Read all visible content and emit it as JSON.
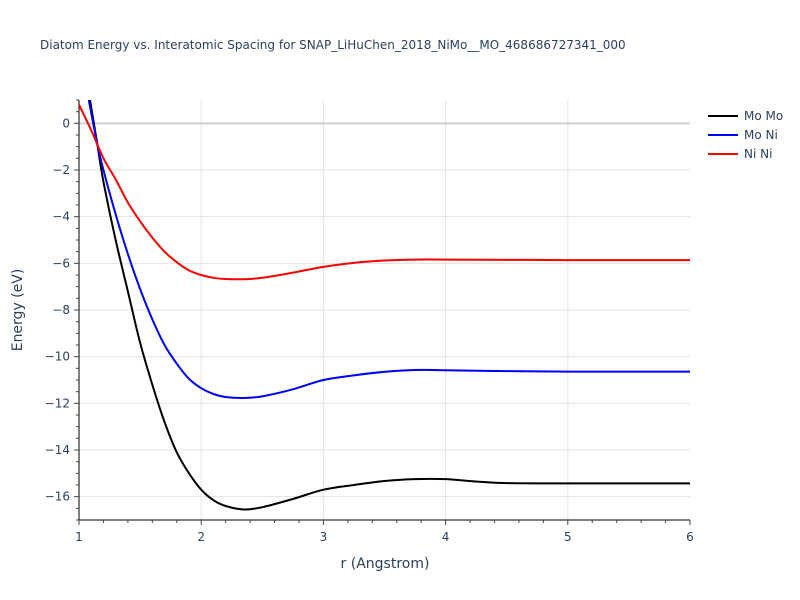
{
  "title": "Diatom Energy vs. Interatomic Spacing for SNAP_LiHuChen_2018_NiMo__MO_468686727341_000",
  "legend": [
    {
      "label": "Mo Mo",
      "color": "#000000"
    },
    {
      "label": "Mo Ni",
      "color": "#0000ff"
    },
    {
      "label": "Ni Ni",
      "color": "#ff0000"
    }
  ],
  "xaxis": {
    "label": "r (Angstrom)",
    "ticks": [
      "1",
      "2",
      "3",
      "4",
      "5",
      "6"
    ]
  },
  "yaxis": {
    "label": "Energy (eV)",
    "ticks": [
      "0",
      "−2",
      "−4",
      "−6",
      "−8",
      "−10",
      "−12",
      "−14",
      "−16"
    ]
  },
  "chart_data": {
    "type": "line",
    "title": "Diatom Energy vs. Interatomic Spacing for SNAP_LiHuChen_2018_NiMo__MO_468686727341_000",
    "xlabel": "r (Angstrom)",
    "ylabel": "Energy (eV)",
    "xlim": [
      1,
      6
    ],
    "ylim": [
      -17,
      1
    ],
    "grid": true,
    "legend_position": "top-right, outside plot",
    "series": [
      {
        "name": "Mo Mo",
        "color": "#000000",
        "x": [
          1.09,
          1.15,
          1.2,
          1.3,
          1.4,
          1.5,
          1.6,
          1.7,
          1.8,
          1.9,
          2.0,
          2.1,
          2.2,
          2.35,
          2.5,
          2.75,
          3.0,
          3.25,
          3.5,
          3.75,
          4.0,
          4.25,
          4.5,
          5.0,
          5.5,
          6.0
        ],
        "y": [
          1.0,
          -0.9,
          -2.5,
          -5.0,
          -7.2,
          -9.4,
          -11.2,
          -12.8,
          -14.1,
          -15.0,
          -15.7,
          -16.15,
          -16.4,
          -16.55,
          -16.45,
          -16.1,
          -15.7,
          -15.5,
          -15.33,
          -15.25,
          -15.25,
          -15.35,
          -15.42,
          -15.43,
          -15.43,
          -15.43
        ]
      },
      {
        "name": "Mo Ni",
        "color": "#0000ff",
        "x": [
          1.08,
          1.15,
          1.2,
          1.3,
          1.4,
          1.5,
          1.6,
          1.7,
          1.8,
          1.9,
          2.0,
          2.1,
          2.2,
          2.35,
          2.5,
          2.75,
          3.0,
          3.25,
          3.5,
          3.75,
          4.0,
          4.5,
          5.0,
          5.5,
          6.0
        ],
        "y": [
          1.0,
          -0.9,
          -2.0,
          -3.9,
          -5.6,
          -7.1,
          -8.4,
          -9.5,
          -10.3,
          -10.95,
          -11.35,
          -11.6,
          -11.73,
          -11.77,
          -11.7,
          -11.4,
          -11.0,
          -10.8,
          -10.65,
          -10.57,
          -10.58,
          -10.62,
          -10.64,
          -10.64,
          -10.64
        ]
      },
      {
        "name": "Ni Ni",
        "color": "#ff0000",
        "x": [
          1.0,
          1.1,
          1.2,
          1.3,
          1.4,
          1.5,
          1.6,
          1.7,
          1.8,
          1.9,
          2.0,
          2.1,
          2.2,
          2.35,
          2.5,
          2.75,
          3.0,
          3.25,
          3.5,
          3.75,
          4.0,
          4.5,
          5.0,
          5.5,
          6.0
        ],
        "y": [
          0.8,
          -0.3,
          -1.5,
          -2.4,
          -3.4,
          -4.2,
          -4.9,
          -5.5,
          -5.95,
          -6.3,
          -6.5,
          -6.62,
          -6.67,
          -6.68,
          -6.62,
          -6.4,
          -6.15,
          -5.98,
          -5.88,
          -5.84,
          -5.84,
          -5.85,
          -5.86,
          -5.86,
          -5.86
        ]
      }
    ]
  }
}
